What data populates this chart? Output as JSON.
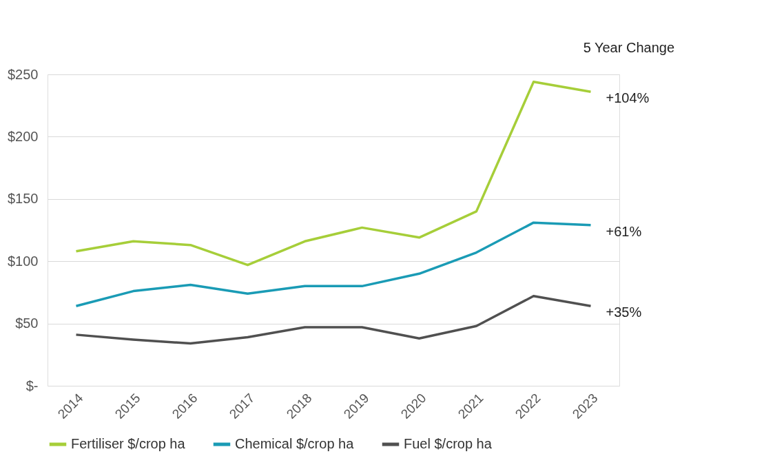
{
  "chart_data": {
    "type": "line",
    "categories": [
      "2014",
      "2015",
      "2016",
      "2017",
      "2018",
      "2019",
      "2020",
      "2021",
      "2022",
      "2023"
    ],
    "series": [
      {
        "name": "Fertiliser $/crop ha",
        "color": "#a6ce39",
        "values": [
          108,
          116,
          113,
          97,
          116,
          127,
          119,
          140,
          244,
          236
        ]
      },
      {
        "name": "Chemical $/crop ha",
        "color": "#1a9bb5",
        "values": [
          64,
          76,
          81,
          74,
          80,
          80,
          90,
          107,
          131,
          129
        ]
      },
      {
        "name": "Fuel $/crop ha",
        "color": "#505050",
        "values": [
          41,
          37,
          34,
          39,
          47,
          47,
          38,
          48,
          72,
          64
        ]
      }
    ],
    "ylim": [
      0,
      250
    ],
    "yticks": [
      {
        "value": 0,
        "label": "$-"
      },
      {
        "value": 50,
        "label": "$50"
      },
      {
        "value": 100,
        "label": "$100"
      },
      {
        "value": 150,
        "label": "$150"
      },
      {
        "value": 200,
        "label": "$200"
      },
      {
        "value": 250,
        "label": "$250"
      }
    ],
    "grid": "y",
    "legend": "bottom",
    "marker": "none",
    "line_style": "solid",
    "annotations": [
      "5 Year Change",
      {
        "text": "+104%",
        "x": "2023",
        "y": 236
      },
      {
        "text": "+61%",
        "x": "2023",
        "y": 129
      },
      {
        "text": "+35%",
        "x": "2023",
        "y": 64
      }
    ]
  }
}
